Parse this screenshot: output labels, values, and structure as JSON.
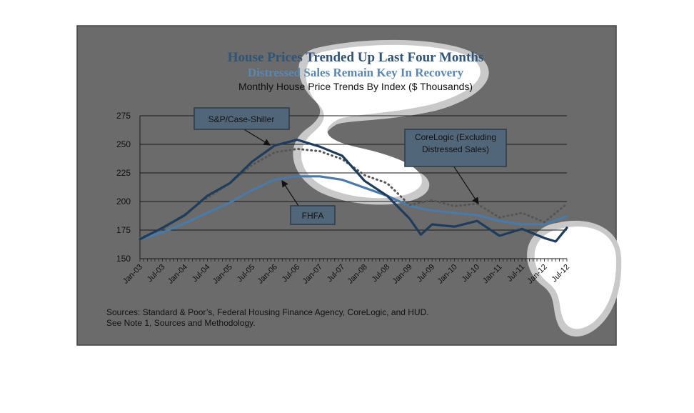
{
  "chart_data": {
    "type": "line",
    "title": "House Prices Trended Up Last Four Months",
    "title_line2": "Distressed Sales Remain Key In Recovery",
    "subtitle": "Monthly House Price Trends By Index ($ Thousands)",
    "ylim": [
      150,
      275
    ],
    "yticks": [
      150,
      175,
      200,
      225,
      250,
      275
    ],
    "xlim": [
      "Jan-03",
      "Jul-12"
    ],
    "xticks": [
      "Jan-03",
      "Jul-03",
      "Jan-04",
      "Jul-04",
      "Jan-05",
      "Jul-05",
      "Jan-06",
      "Jul-06",
      "Jan-07",
      "Jul-07",
      "Jan-08",
      "Jul-08",
      "Jan-09",
      "Jul-09",
      "Jan-10",
      "Jul-10",
      "Jan-11",
      "Jul-11",
      "Jan-12",
      "Jul-12"
    ],
    "grid": true,
    "series": [
      {
        "name": "S&P/Case-Shiller",
        "color": "#1e3d5c",
        "style": "solid",
        "x": [
          "Jan-03",
          "Jul-03",
          "Jan-04",
          "Jul-04",
          "Jan-05",
          "Jul-05",
          "Jan-06",
          "Jul-06",
          "Jan-07",
          "Jul-07",
          "Jan-08",
          "Jul-08",
          "Jan-09",
          "Apr-09",
          "Jul-09",
          "Jan-10",
          "Jul-10",
          "Jan-11",
          "Jul-11",
          "Jan-12",
          "Apr-12",
          "Jul-12"
        ],
        "values": [
          167,
          177,
          188,
          205,
          216,
          235,
          249,
          254,
          248,
          240,
          218,
          205,
          185,
          171,
          180,
          178,
          183,
          170,
          176,
          168,
          165,
          177
        ]
      },
      {
        "name": "FHFA",
        "color": "#4a7aa8",
        "style": "solid",
        "x": [
          "Jan-03",
          "Jul-03",
          "Jan-04",
          "Jul-04",
          "Jan-05",
          "Jul-05",
          "Jan-06",
          "Jul-06",
          "Jan-07",
          "Jul-07",
          "Jan-08",
          "Jul-08",
          "Jan-09",
          "Jul-09",
          "Jan-10",
          "Jul-10",
          "Jan-11",
          "Jul-11",
          "Jan-12",
          "Jul-12"
        ],
        "values": [
          167,
          173,
          181,
          190,
          199,
          210,
          219,
          222,
          222,
          219,
          212,
          205,
          196,
          192,
          190,
          188,
          183,
          180,
          180,
          187
        ]
      },
      {
        "name": "CoreLogic (Excluding Distressed Sales)",
        "color": "#555555",
        "style": "dotted",
        "x": [
          "Jan-03",
          "Jul-03",
          "Jan-04",
          "Jul-04",
          "Jan-05",
          "Jul-05",
          "Jan-06",
          "Jul-06",
          "Jan-07",
          "Jul-07",
          "Jan-08",
          "Jul-08",
          "Jan-09",
          "Jul-09",
          "Jan-10",
          "Jul-10",
          "Jan-11",
          "Jul-11",
          "Jan-12",
          "Jul-12"
        ],
        "values": [
          168,
          176,
          189,
          203,
          216,
          232,
          243,
          246,
          244,
          237,
          223,
          216,
          197,
          201,
          196,
          198,
          186,
          190,
          182,
          198
        ]
      }
    ],
    "annotations": [
      {
        "label": "S&P/Case-Shiller",
        "points_to": "S&P/Case-Shiller"
      },
      {
        "label_line1": "CoreLogic (Excluding",
        "label_line2": "Distressed Sales)",
        "points_to": "CoreLogic (Excluding Distressed Sales)"
      },
      {
        "label": "FHFA",
        "points_to": "FHFA"
      }
    ],
    "source_line1": "Sources:  Standard & Poor’s, Federal Housing Finance Agency, CoreLogic, and HUD.",
    "source_line2": "See Note 1, Sources and Methodology."
  },
  "colors": {
    "panel_background": "#6b6b6b",
    "panel_border": "#444444",
    "highlight_fill": "#ffffff",
    "highlight_halo": "#c9c9c9",
    "callout_fill": "#52667a",
    "callout_stroke": "#2c3b4a"
  }
}
